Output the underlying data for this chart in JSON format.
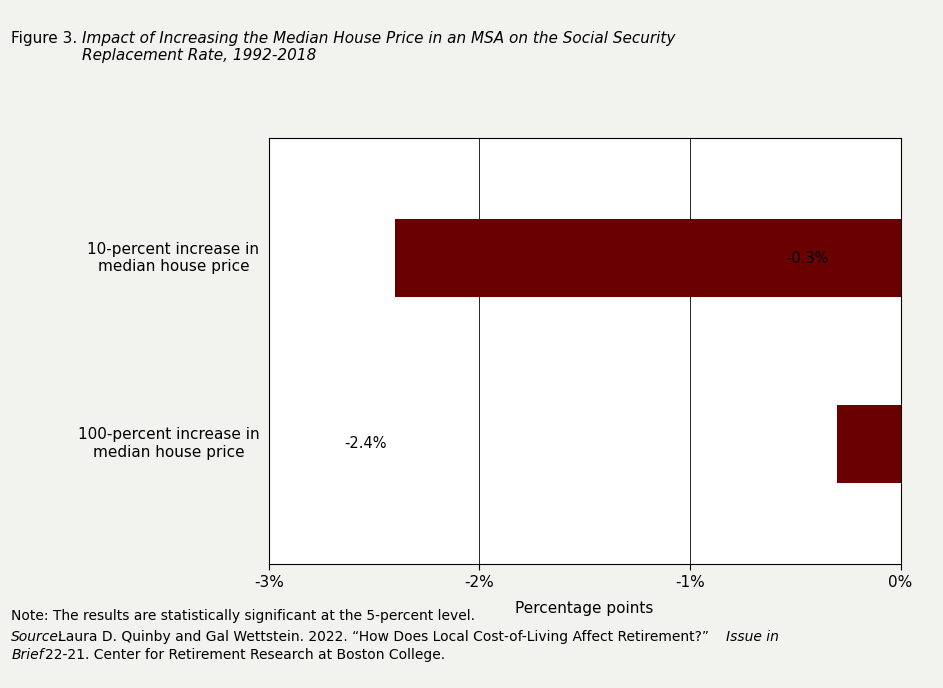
{
  "title_plain": "Figure 3. ",
  "title_italic": "Impact of Increasing the Median House Price in an MSA on the Social Security\nReplacement Rate, 1992-2018",
  "categories": [
    "10-percent increase in\nmedian house price",
    "100-percent increase in\nmedian house price"
  ],
  "values": [
    -0.3,
    -2.4
  ],
  "bar_color": "#6B0000",
  "bar_labels": [
    "-0.3%",
    "-2.4%"
  ],
  "xlabel": "Percentage points",
  "xlim": [
    -3,
    0
  ],
  "xticks": [
    -3,
    -2,
    -1,
    0
  ],
  "xtick_labels": [
    "-3%",
    "-2%",
    "-1%",
    "0%"
  ],
  "note_text": "Note: The results are statistically significant at the 5-percent level.",
  "background_color": "#f2f2ee",
  "bar_label_fontsize": 10.5,
  "axis_label_fontsize": 11,
  "tick_fontsize": 11,
  "title_fontsize": 11,
  "note_fontsize": 10,
  "ytick_fontsize": 11
}
